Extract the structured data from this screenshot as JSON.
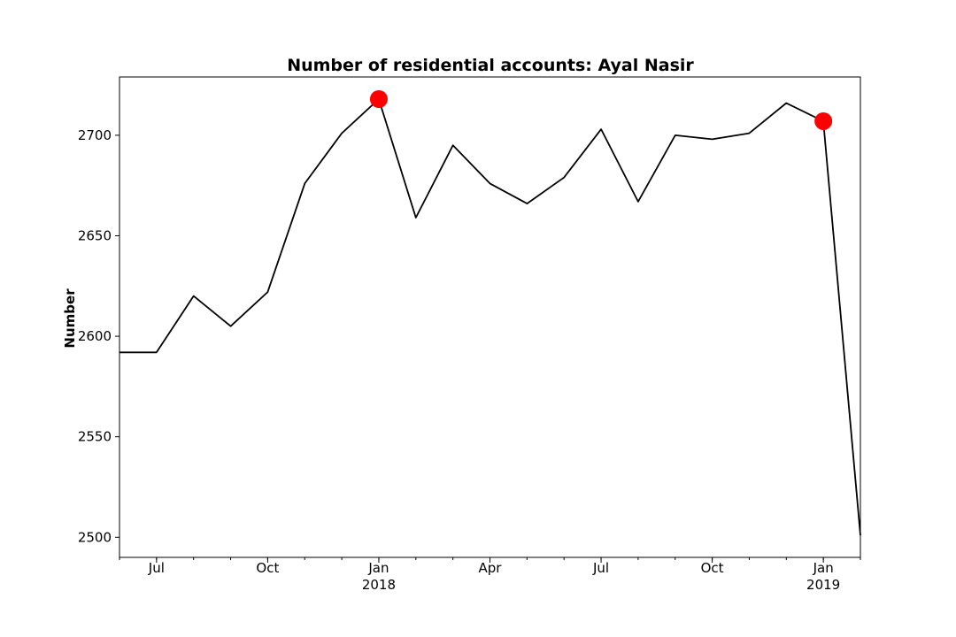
{
  "chart_data": {
    "type": "line",
    "title": "Number of residential accounts: Ayal Nasir",
    "xlabel": "",
    "ylabel": "Number",
    "x_range": [
      "2017-06",
      "2019-02"
    ],
    "ylim": [
      2490,
      2729
    ],
    "grid": false,
    "line_color": "#000000",
    "marker_color": "#ff0000",
    "x": [
      "2017-06",
      "2017-07",
      "2017-08",
      "2017-09",
      "2017-10",
      "2017-11",
      "2017-12",
      "2018-01",
      "2018-02",
      "2018-03",
      "2018-04",
      "2018-05",
      "2018-06",
      "2018-07",
      "2018-08",
      "2018-09",
      "2018-10",
      "2018-11",
      "2018-12",
      "2019-01",
      "2019-02"
    ],
    "values": [
      2592,
      2592,
      2620,
      2605,
      2622,
      2676,
      2701,
      2718,
      2659,
      2695,
      2676,
      2666,
      2679,
      2703,
      2667,
      2700,
      2698,
      2701,
      2716,
      2707,
      2501
    ],
    "highlighted_points": [
      {
        "x": "2018-01",
        "y": 2718
      },
      {
        "x": "2019-01",
        "y": 2707
      }
    ],
    "y_ticks": [
      2500,
      2550,
      2600,
      2650,
      2700
    ],
    "x_ticks": [
      {
        "x": "2017-07",
        "label": "Jul",
        "sublabel": ""
      },
      {
        "x": "2017-10",
        "label": "Oct",
        "sublabel": ""
      },
      {
        "x": "2018-01",
        "label": "Jan",
        "sublabel": "2018"
      },
      {
        "x": "2018-04",
        "label": "Apr",
        "sublabel": ""
      },
      {
        "x": "2018-07",
        "label": "Jul",
        "sublabel": ""
      },
      {
        "x": "2018-10",
        "label": "Oct",
        "sublabel": ""
      },
      {
        "x": "2019-01",
        "label": "Jan",
        "sublabel": "2019"
      }
    ]
  }
}
